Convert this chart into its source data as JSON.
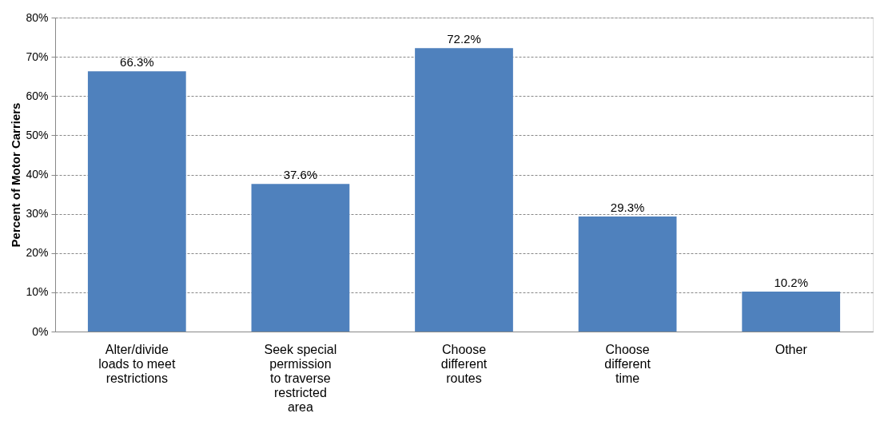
{
  "chart_data": {
    "type": "bar",
    "ylabel": "Percent of Motor Carriers",
    "categories": [
      "Alter/divide\nloads to meet\nrestrictions",
      "Seek special\npermission\nto traverse\nrestricted\narea",
      "Choose\ndifferent\nroutes",
      "Choose\ndifferent\ntime",
      "Other"
    ],
    "values": [
      66.3,
      37.6,
      72.2,
      29.3,
      10.2
    ],
    "value_labels": [
      "66.3%",
      "37.6%",
      "72.2%",
      "29.3%",
      "10.2%"
    ],
    "color": "#4f81bd",
    "ylim": [
      0,
      80
    ],
    "yticks": [
      {
        "value": 0,
        "label": "0%"
      },
      {
        "value": 10,
        "label": "10%"
      },
      {
        "value": 20,
        "label": "20%"
      },
      {
        "value": 30,
        "label": "30%"
      },
      {
        "value": 40,
        "label": "40%"
      },
      {
        "value": 50,
        "label": "50%"
      },
      {
        "value": 60,
        "label": "60%"
      },
      {
        "value": 70,
        "label": "70%"
      },
      {
        "value": 80,
        "label": "80%"
      }
    ],
    "grid": "y"
  }
}
